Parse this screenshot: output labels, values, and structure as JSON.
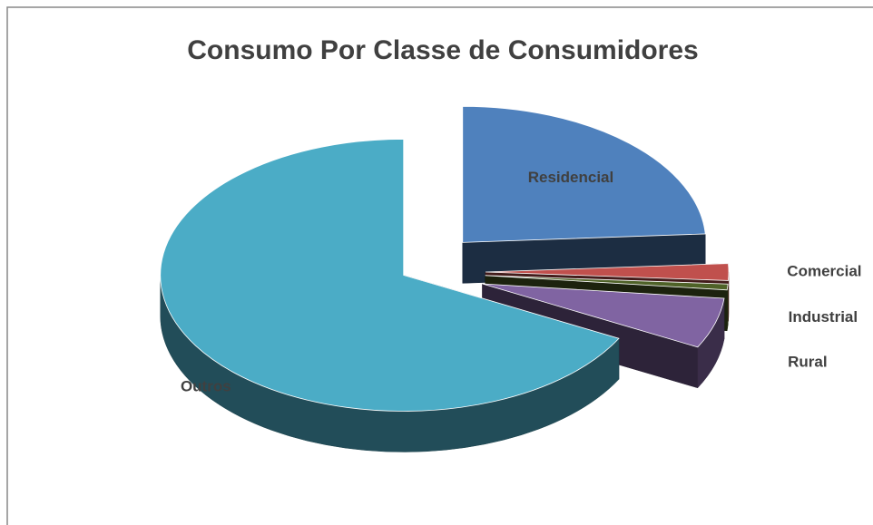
{
  "chart_data": {
    "type": "pie3d",
    "title": "Consumo Por Classe de Consumidores",
    "categories": [
      "Residencial",
      "Comercial",
      "Industrial",
      "Rural",
      "Outros"
    ],
    "values": [
      24,
      2,
      0.7,
      6,
      67.3
    ],
    "colors": [
      "#4f81bd",
      "#c0504d",
      "#4f6228",
      "#8064a2",
      "#4bacc6"
    ]
  }
}
